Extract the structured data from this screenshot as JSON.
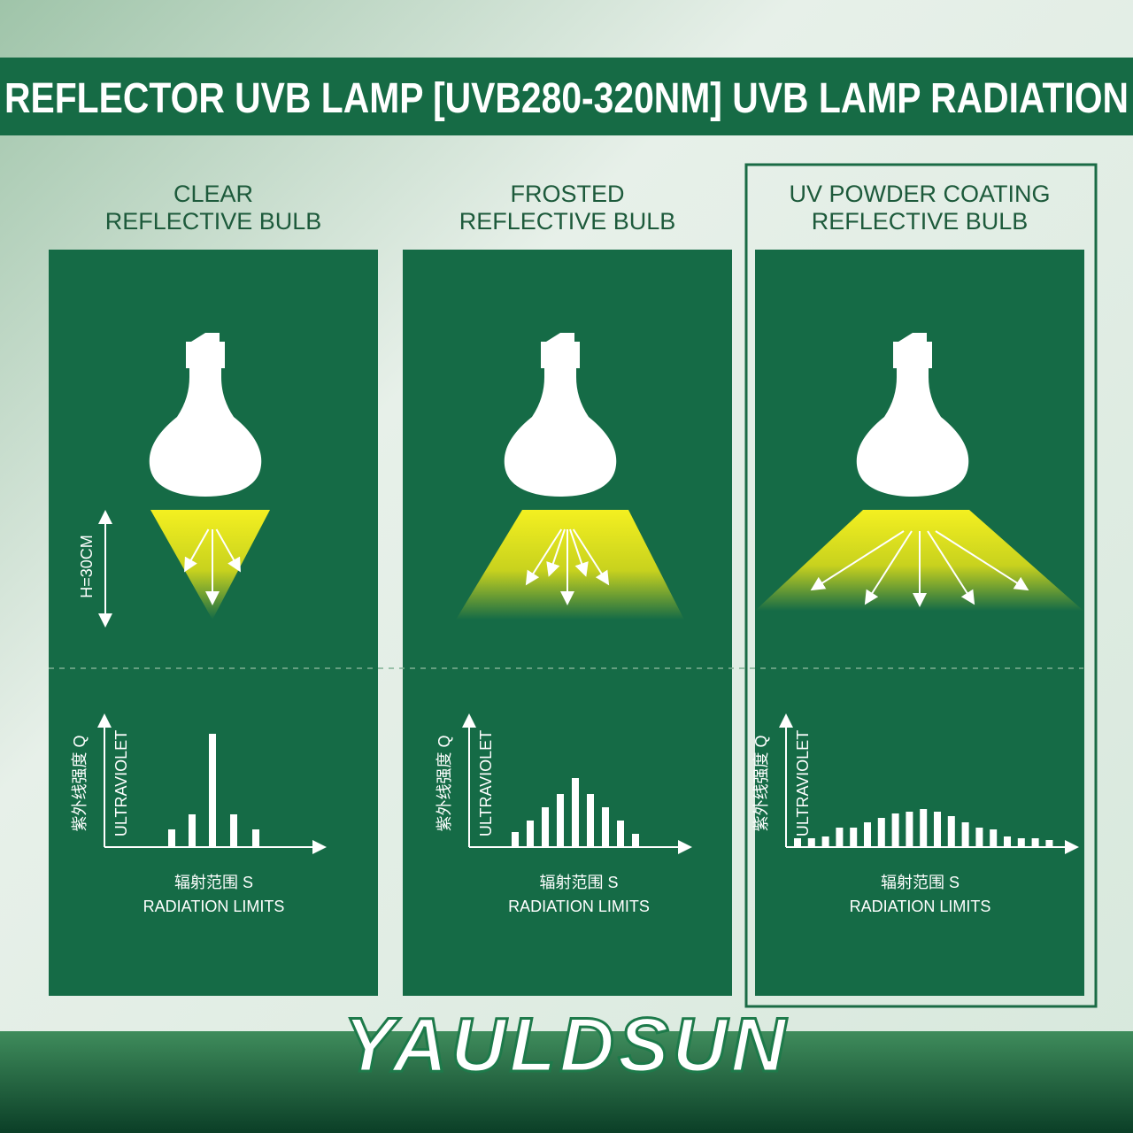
{
  "header": {
    "title": "REFLECTOR UVB LAMP [UVB280-320NM] UVB LAMP RADIATION"
  },
  "panels": [
    {
      "title_lines": [
        "CLEAR",
        "REFLECTIVE BULB"
      ],
      "height_label": "H=30CM",
      "y_label_cn": "紫外线强度 Q",
      "y_label_en": "ULTRAVIOLET",
      "x_label_cn": "辐射范围 S",
      "x_label_en": "RADIATION LIMITS"
    },
    {
      "title_lines": [
        "FROSTED",
        "REFLECTIVE BULB"
      ],
      "y_label_cn": "紫外线强度 Q",
      "y_label_en": "ULTRAVIOLET",
      "x_label_cn": "辐射范围 S",
      "x_label_en": "RADIATION LIMITS"
    },
    {
      "title_lines": [
        "UV POWDER COATING",
        "REFLECTIVE BULB"
      ],
      "y_label_cn": "紫外线强度 Q",
      "y_label_en": "ULTRAVIOLET",
      "x_label_cn": "辐射范围 S",
      "x_label_en": "RADIATION LIMITS"
    }
  ],
  "brand": "YAULDSUN"
}
